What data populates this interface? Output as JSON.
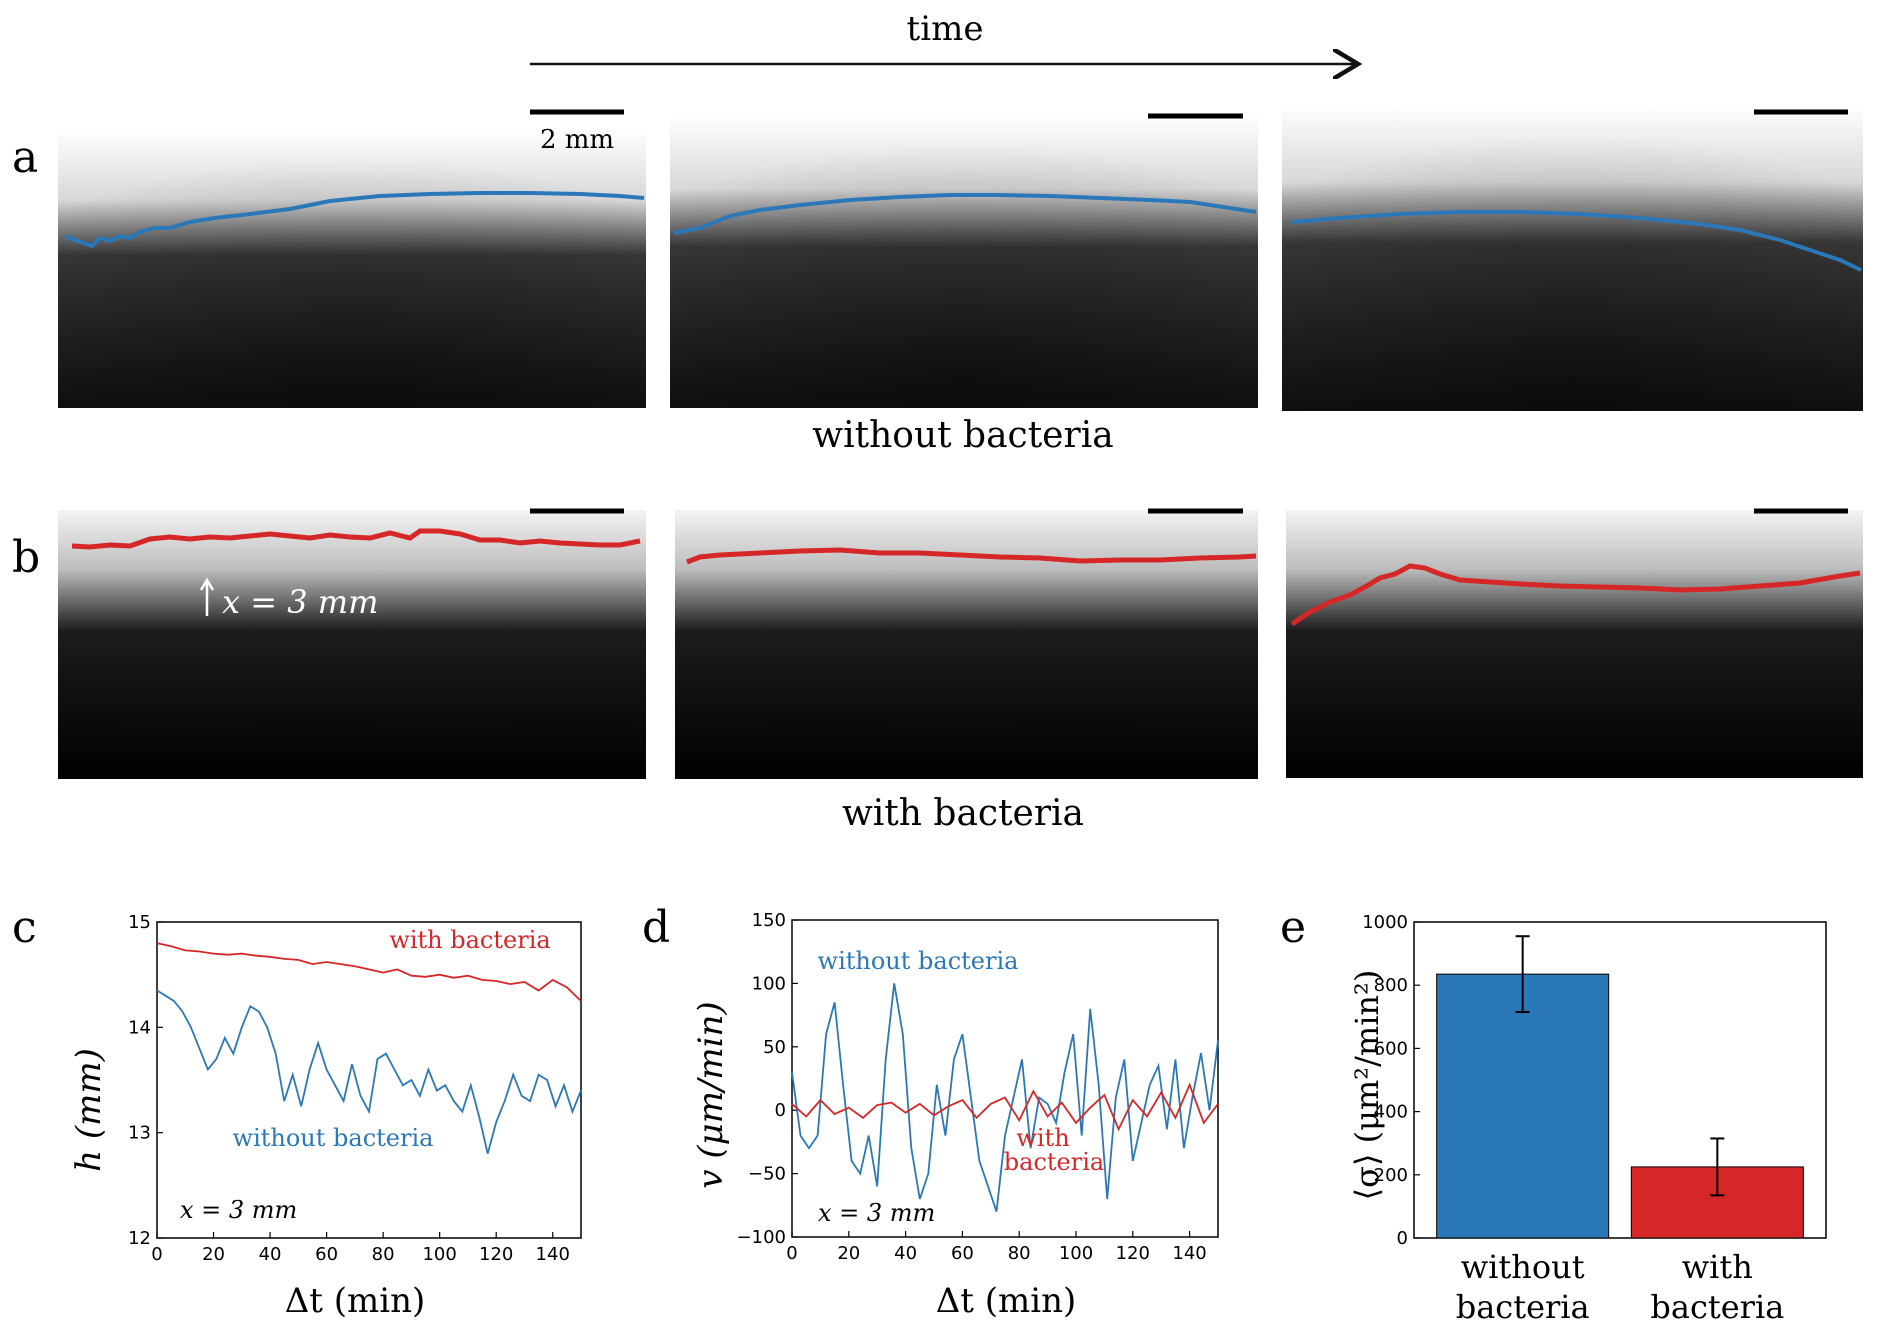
{
  "header": {
    "time_label": "time"
  },
  "scale_bar_label": "2 mm",
  "colors": {
    "blue": "#2a78b8",
    "red": "#d62728",
    "axis": "#000000"
  },
  "row_a": {
    "panel_letter": "a",
    "caption": "without bacteria",
    "frames": [
      {
        "name": "frame-1",
        "interface": "uneven rising front"
      },
      {
        "name": "frame-2",
        "interface": "smooth arc"
      },
      {
        "name": "frame-3",
        "interface": "falling to right"
      }
    ]
  },
  "row_b": {
    "panel_letter": "b",
    "caption": "with bacteria",
    "marker_label": "x = 3 mm",
    "frames": [
      {
        "name": "frame-1",
        "interface": "flat wavy"
      },
      {
        "name": "frame-2",
        "interface": "flat"
      },
      {
        "name": "frame-3",
        "interface": "bump then flat"
      }
    ]
  },
  "chart_data": [
    {
      "panel_letter": "c",
      "type": "line",
      "xlabel": "Δt (min)",
      "ylabel": "h (mm)",
      "xlim": [
        0,
        150
      ],
      "ylim": [
        12,
        15
      ],
      "xticks": [
        "0",
        "20",
        "40",
        "60",
        "80",
        "100",
        "120",
        "140"
      ],
      "yticks": [
        "12",
        "13",
        "14",
        "15"
      ],
      "annotation": "x = 3 mm",
      "series": [
        {
          "name": "with bacteria",
          "color": "#d62728",
          "x": [
            0,
            5,
            10,
            15,
            20,
            25,
            30,
            35,
            40,
            45,
            50,
            55,
            60,
            65,
            70,
            75,
            80,
            85,
            90,
            95,
            100,
            105,
            110,
            115,
            120,
            125,
            130,
            135,
            140,
            145,
            150
          ],
          "y": [
            14.8,
            14.77,
            14.73,
            14.72,
            14.7,
            14.69,
            14.7,
            14.68,
            14.67,
            14.65,
            14.64,
            14.6,
            14.62,
            14.6,
            14.58,
            14.55,
            14.52,
            14.55,
            14.49,
            14.48,
            14.5,
            14.47,
            14.49,
            14.45,
            14.44,
            14.41,
            14.43,
            14.35,
            14.45,
            14.38,
            14.25
          ]
        },
        {
          "name": "without bacteria",
          "color": "#2a78b8",
          "x": [
            0,
            3,
            6,
            9,
            12,
            15,
            18,
            21,
            24,
            27,
            30,
            33,
            36,
            39,
            42,
            45,
            48,
            51,
            54,
            57,
            60,
            63,
            66,
            69,
            72,
            75,
            78,
            81,
            84,
            87,
            90,
            93,
            96,
            99,
            102,
            105,
            108,
            111,
            114,
            117,
            120,
            123,
            126,
            129,
            132,
            135,
            138,
            141,
            144,
            147,
            150
          ],
          "y": [
            14.35,
            14.3,
            14.25,
            14.15,
            14.0,
            13.8,
            13.6,
            13.7,
            13.9,
            13.75,
            14.0,
            14.2,
            14.15,
            14.0,
            13.75,
            13.3,
            13.55,
            13.25,
            13.6,
            13.85,
            13.6,
            13.45,
            13.3,
            13.65,
            13.35,
            13.2,
            13.7,
            13.75,
            13.6,
            13.45,
            13.5,
            13.35,
            13.6,
            13.4,
            13.45,
            13.3,
            13.2,
            13.45,
            13.15,
            12.8,
            13.1,
            13.3,
            13.55,
            13.35,
            13.3,
            13.55,
            13.5,
            13.25,
            13.45,
            13.2,
            13.4
          ]
        }
      ]
    },
    {
      "panel_letter": "d",
      "type": "line",
      "xlabel": "Δt (min)",
      "ylabel": "v (μm/min)",
      "xlim": [
        0,
        150
      ],
      "ylim": [
        -100,
        150
      ],
      "xticks": [
        "0",
        "20",
        "40",
        "60",
        "80",
        "100",
        "120",
        "140"
      ],
      "yticks": [
        "−100",
        "−50",
        "0",
        "50",
        "100",
        "150"
      ],
      "annotation": "x = 3 mm",
      "series": [
        {
          "name": "without bacteria",
          "color": "#2a78b8",
          "x": [
            0,
            3,
            6,
            9,
            12,
            15,
            18,
            21,
            24,
            27,
            30,
            33,
            36,
            39,
            42,
            45,
            48,
            51,
            54,
            57,
            60,
            63,
            66,
            69,
            72,
            75,
            78,
            81,
            84,
            87,
            90,
            93,
            96,
            99,
            102,
            105,
            108,
            111,
            114,
            117,
            120,
            123,
            126,
            129,
            132,
            135,
            138,
            141,
            144,
            147,
            150
          ],
          "y": [
            30,
            -20,
            -30,
            -20,
            60,
            85,
            20,
            -40,
            -50,
            -20,
            -60,
            40,
            100,
            60,
            -30,
            -70,
            -50,
            20,
            -20,
            40,
            60,
            10,
            -40,
            -60,
            -80,
            -20,
            10,
            40,
            -30,
            10,
            5,
            -10,
            30,
            60,
            -20,
            80,
            20,
            -70,
            10,
            40,
            -40,
            -10,
            20,
            35,
            -15,
            40,
            -30,
            10,
            45,
            0,
            55
          ]
        },
        {
          "name": "with bacteria",
          "color": "#d62728",
          "x": [
            0,
            5,
            10,
            15,
            20,
            25,
            30,
            35,
            40,
            45,
            50,
            55,
            60,
            65,
            70,
            75,
            80,
            85,
            90,
            95,
            100,
            105,
            110,
            115,
            120,
            125,
            130,
            135,
            140,
            145,
            150
          ],
          "y": [
            5,
            -5,
            8,
            -3,
            2,
            -6,
            4,
            6,
            -2,
            5,
            -4,
            3,
            8,
            -6,
            5,
            10,
            -8,
            15,
            -5,
            6,
            -10,
            2,
            12,
            -15,
            8,
            -5,
            14,
            -6,
            20,
            -10,
            5
          ]
        }
      ]
    },
    {
      "panel_letter": "e",
      "type": "bar",
      "categories": [
        "without bacteria",
        "with bacteria"
      ],
      "category_lines": [
        [
          "without",
          "bacteria"
        ],
        [
          "with",
          "bacteria"
        ]
      ],
      "values": [
        835,
        225
      ],
      "errors": [
        120,
        90
      ],
      "colors": [
        "#2a78b8",
        "#d62728"
      ],
      "ylabel": "⟨σ⟩ (μm²/min²)",
      "ylim": [
        0,
        1000
      ],
      "yticks": [
        "0",
        "200",
        "400",
        "600",
        "800",
        "1000"
      ]
    }
  ]
}
